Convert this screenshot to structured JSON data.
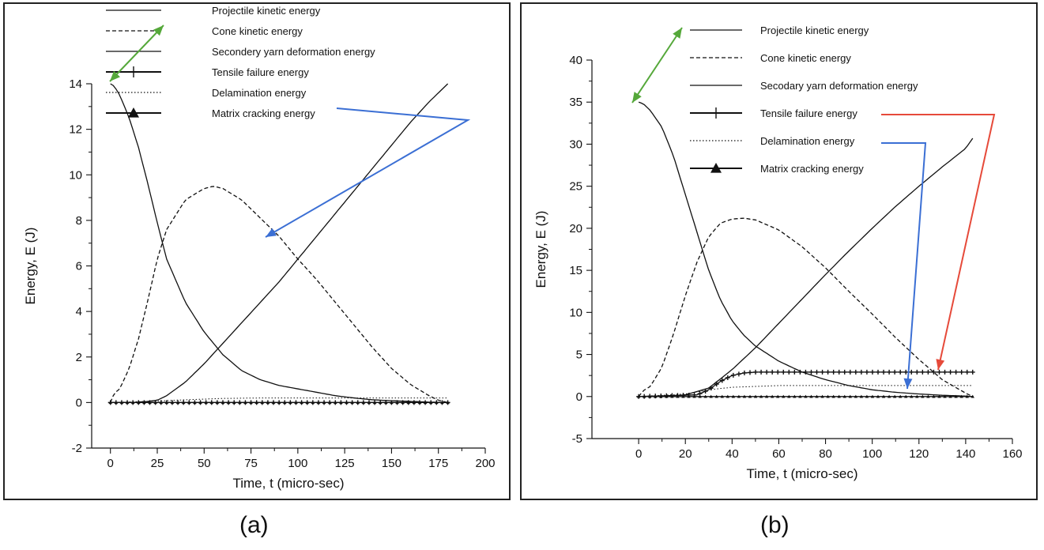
{
  "chart_data": [
    {
      "type": "line",
      "panel_label": "(a)",
      "xlabel": "Time, t (micro-sec)",
      "ylabel": "Energy, E (J)",
      "xlim": [
        -10,
        200
      ],
      "ylim": [
        -2,
        14
      ],
      "xticks": [
        0,
        25,
        50,
        75,
        100,
        125,
        150,
        175,
        200
      ],
      "yticks": [
        -2,
        0,
        2,
        4,
        6,
        8,
        10,
        12,
        14
      ],
      "legend_position": "top-right",
      "series": [
        {
          "name": "Projectile kinetic energy",
          "style": "solid",
          "x": [
            0,
            2,
            5,
            10,
            15,
            20,
            25,
            30,
            40,
            50,
            60,
            70,
            80,
            90,
            100,
            110,
            120,
            130,
            140,
            150,
            160,
            170,
            180
          ],
          "y": [
            14,
            13.9,
            13.5,
            12.5,
            11.2,
            9.6,
            7.9,
            6.3,
            4.4,
            3.1,
            2.1,
            1.4,
            1.0,
            0.75,
            0.6,
            0.45,
            0.3,
            0.2,
            0.12,
            0.08,
            0.05,
            0.02,
            0.0
          ]
        },
        {
          "name": "Cone kinetic energy",
          "style": "dashed",
          "x": [
            0,
            2,
            5,
            10,
            15,
            20,
            25,
            30,
            40,
            50,
            55,
            60,
            70,
            80,
            90,
            100,
            110,
            120,
            130,
            140,
            150,
            160,
            170,
            175,
            180
          ],
          "y": [
            0,
            0.4,
            0.6,
            1.5,
            2.8,
            4.5,
            6.3,
            7.6,
            8.9,
            9.4,
            9.5,
            9.4,
            8.9,
            8.1,
            7.3,
            6.3,
            5.4,
            4.4,
            3.4,
            2.4,
            1.5,
            0.8,
            0.3,
            0.1,
            0.0
          ]
        },
        {
          "name": "Secondery yarn deformation energy",
          "style": "solid",
          "x": [
            0,
            10,
            15,
            20,
            25,
            30,
            40,
            50,
            60,
            70,
            80,
            90,
            100,
            110,
            120,
            130,
            140,
            150,
            160,
            170,
            180
          ],
          "y": [
            0,
            0,
            0.02,
            0.05,
            0.1,
            0.3,
            0.9,
            1.7,
            2.6,
            3.5,
            4.4,
            5.3,
            6.3,
            7.3,
            8.3,
            9.3,
            10.3,
            11.3,
            12.3,
            13.2,
            14.0
          ]
        },
        {
          "name": "Tensile failure energy",
          "style": "plus",
          "x": [
            0,
            180
          ],
          "y": [
            0,
            0
          ]
        },
        {
          "name": "Delamination energy",
          "style": "dotted",
          "x": [
            0,
            20,
            40,
            60,
            80,
            100,
            120,
            140,
            160,
            180
          ],
          "y": [
            0,
            0.05,
            0.12,
            0.18,
            0.2,
            0.2,
            0.2,
            0.2,
            0.2,
            0.2
          ]
        },
        {
          "name": "Matrix cracking energy",
          "style": "triangle",
          "x": [
            0,
            180
          ],
          "y": [
            0,
            0
          ]
        }
      ],
      "annotation_arrows": [
        {
          "color": "#55a83a",
          "note": "projectile kinetic energy"
        },
        {
          "color": "#3b6fd4",
          "note": "delamination energy"
        }
      ]
    },
    {
      "type": "line",
      "panel_label": "(b)",
      "xlabel": "Time, t (micro-sec)",
      "ylabel": "Energy, E (J)",
      "xlim": [
        -20,
        160
      ],
      "ylim": [
        -5,
        40
      ],
      "xticks": [
        0,
        20,
        40,
        60,
        80,
        100,
        120,
        140,
        160
      ],
      "yticks": [
        -5,
        0,
        5,
        10,
        15,
        20,
        25,
        30,
        35,
        40
      ],
      "legend_position": "top-right",
      "series": [
        {
          "name": "Projectile kinetic energy",
          "style": "solid",
          "x": [
            0,
            2,
            5,
            10,
            15,
            20,
            25,
            30,
            35,
            40,
            45,
            50,
            60,
            70,
            80,
            90,
            100,
            110,
            120,
            130,
            140,
            143
          ],
          "y": [
            35,
            34.8,
            34,
            32,
            28.5,
            24,
            19.5,
            15,
            11.5,
            9,
            7.3,
            6,
            4.2,
            2.9,
            2.0,
            1.3,
            0.8,
            0.5,
            0.3,
            0.15,
            0.05,
            0.0
          ]
        },
        {
          "name": "Cone kinetic energy",
          "style": "dashed",
          "x": [
            0,
            2,
            5,
            10,
            15,
            20,
            25,
            30,
            35,
            40,
            45,
            50,
            60,
            70,
            80,
            90,
            100,
            110,
            120,
            130,
            140,
            143
          ],
          "y": [
            0,
            0.7,
            1.2,
            3.5,
            7.5,
            12,
            16,
            19,
            20.6,
            21.1,
            21.2,
            21,
            19.8,
            17.8,
            15.3,
            12.5,
            9.8,
            7.0,
            4.4,
            2.0,
            0.4,
            0.0
          ]
        },
        {
          "name": "Secodary yarn deformation energy",
          "style": "solid",
          "x": [
            0,
            10,
            20,
            30,
            40,
            50,
            60,
            70,
            80,
            90,
            100,
            110,
            120,
            130,
            140,
            143
          ],
          "y": [
            0,
            0,
            0.2,
            1.0,
            3.2,
            5.8,
            8.7,
            11.6,
            14.5,
            17.3,
            20.0,
            22.6,
            25.0,
            27.3,
            29.5,
            30.7
          ]
        },
        {
          "name": "Tensile failure energy",
          "style": "plus",
          "x": [
            0,
            25,
            30,
            35,
            40,
            45,
            50,
            60,
            80,
            100,
            120,
            143
          ],
          "y": [
            0,
            0.2,
            0.8,
            1.8,
            2.5,
            2.8,
            2.9,
            2.9,
            2.9,
            2.9,
            2.9,
            2.9
          ]
        },
        {
          "name": "Delamination energy",
          "style": "dotted",
          "x": [
            0,
            20,
            30,
            40,
            60,
            80,
            100,
            120,
            143
          ],
          "y": [
            0,
            0.3,
            0.8,
            1.1,
            1.3,
            1.3,
            1.3,
            1.3,
            1.3
          ]
        },
        {
          "name": "Matrix cracking energy",
          "style": "triangle",
          "x": [
            0,
            143
          ],
          "y": [
            0,
            0
          ]
        }
      ],
      "annotation_arrows": [
        {
          "color": "#55a83a",
          "note": "projectile kinetic energy"
        },
        {
          "color": "#e64a3a",
          "note": "tensile failure energy"
        },
        {
          "color": "#3b6fd4",
          "note": "delamination energy"
        }
      ]
    }
  ]
}
